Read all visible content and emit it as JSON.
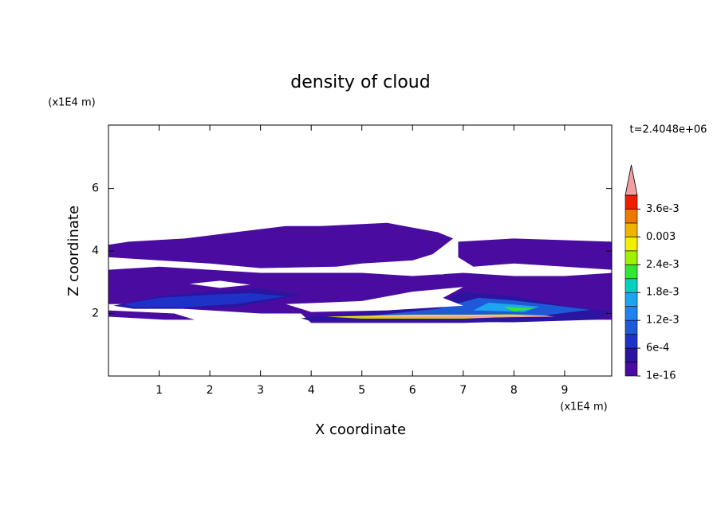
{
  "chart_data": {
    "type": "contour",
    "title": "density of cloud",
    "annotation": "t=2.4048e+06",
    "x_label": "X coordinate",
    "y_label": "Z coordinate",
    "x_unit": "(x1E4 m)",
    "y_unit": "(x1E4 m)",
    "xlim": [
      0,
      9.93
    ],
    "ylim": [
      0,
      8.03
    ],
    "xticks": [
      1,
      2,
      3,
      4,
      5,
      6,
      7,
      8,
      9
    ],
    "yticks": [
      2,
      4,
      6
    ],
    "colorbar": {
      "lim": [
        0,
        0.0039
      ],
      "colors": [
        "#4a0ca0",
        "#2a14a0",
        "#1e32c8",
        "#1e5ad8",
        "#1e82f0",
        "#1ea5f0",
        "#00d2c0",
        "#32e632",
        "#a0f000",
        "#f0f000",
        "#f0b400",
        "#f07800",
        "#f01e00"
      ],
      "over_color": "#f0a0a0",
      "ticks": [
        1e-16,
        {
          "value": 0.0006,
          "label": "6e-4"
        },
        {
          "value": 0.0012,
          "label": "1.2e-3"
        },
        {
          "value": 0.0018,
          "label": "1.8e-3"
        },
        {
          "value": 0.0024,
          "label": "2.4e-3"
        },
        0.003,
        {
          "value": 0.0036,
          "label": "3.6e-3"
        }
      ]
    }
  }
}
